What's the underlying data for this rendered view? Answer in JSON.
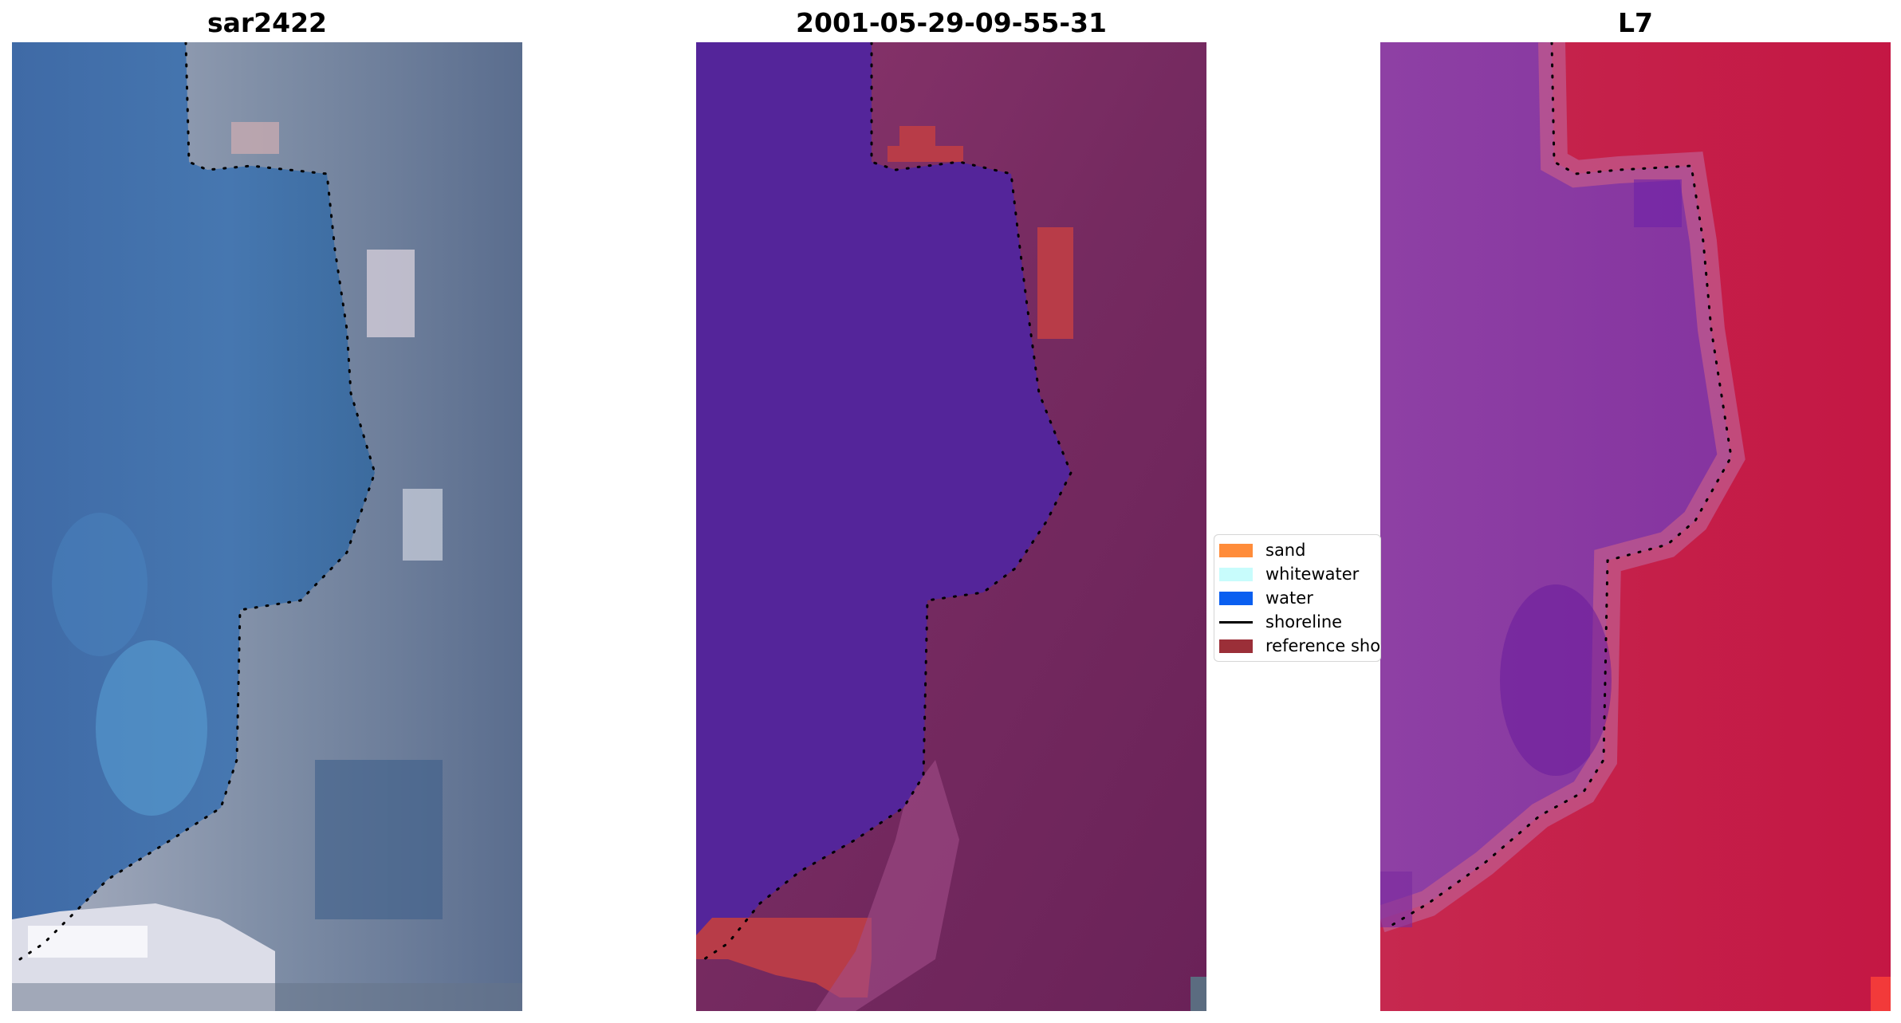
{
  "panels": [
    {
      "title": "sar2422",
      "kind": "rgb"
    },
    {
      "title": "2001-05-29-09-55-31",
      "kind": "classified"
    },
    {
      "title": "L7",
      "kind": "index"
    }
  ],
  "legend": {
    "items": [
      {
        "label": "sand",
        "color": "#ff8c3a",
        "shape": "patch"
      },
      {
        "label": "whitewater",
        "color": "#c8fcfc",
        "shape": "patch"
      },
      {
        "label": "water",
        "color": "#0a5ff0",
        "shape": "patch"
      },
      {
        "label": "shoreline",
        "color": "#000000",
        "shape": "line"
      },
      {
        "label": "reference shoreline",
        "color": "#9b2f38",
        "shape": "patch"
      }
    ]
  },
  "colors": {
    "water_class": "#54259a",
    "land_class": "#7a2a64",
    "sand_class": "#b83c48",
    "rgb_water": "#3e6fa8",
    "rgb_land": "#8a94a8",
    "rgb_sand": "#e4e4ec",
    "index_water": "#8a3aa0",
    "index_land": "#c8204e"
  }
}
